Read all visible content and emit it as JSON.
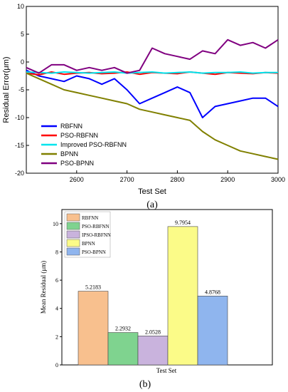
{
  "chart_data": [
    {
      "type": "line",
      "xlabel": "Test Set",
      "ylabel": "Residual Error(μm)",
      "xlim": [
        2500,
        3000
      ],
      "ylim": [
        -20,
        10
      ],
      "xticks": [
        2600,
        2700,
        2800,
        2900,
        3000
      ],
      "yticks": [
        -20,
        -15,
        -10,
        -5,
        0,
        5,
        10
      ],
      "legend_position": "bottom-left",
      "panel_label": "(a)",
      "series": [
        {
          "name": "RBFNN",
          "color": "#0000ff",
          "x": [
            2500,
            2525,
            2550,
            2575,
            2600,
            2625,
            2650,
            2675,
            2700,
            2725,
            2750,
            2775,
            2800,
            2825,
            2850,
            2875,
            2900,
            2925,
            2950,
            2975,
            3000
          ],
          "y": [
            -1.5,
            -2.5,
            -3.0,
            -3.5,
            -2.5,
            -3.0,
            -4.0,
            -3.0,
            -5.0,
            -7.5,
            -6.5,
            -5.5,
            -4.5,
            -5.5,
            -10.0,
            -8.0,
            -7.5,
            -7.0,
            -6.5,
            -6.5,
            -8.0
          ]
        },
        {
          "name": "PSO-RBFNN",
          "color": "#ff0000",
          "x": [
            2500,
            2525,
            2550,
            2575,
            2600,
            2625,
            2650,
            2675,
            2700,
            2725,
            2750,
            2775,
            2800,
            2825,
            2850,
            2875,
            2900,
            2925,
            2950,
            2975,
            3000
          ],
          "y": [
            -2.0,
            -2.3,
            -1.8,
            -2.2,
            -2.0,
            -1.9,
            -2.1,
            -2.0,
            -1.8,
            -2.2,
            -1.9,
            -2.0,
            -2.1,
            -1.8,
            -2.0,
            -2.2,
            -1.9,
            -2.0,
            -2.1,
            -1.9,
            -2.0
          ]
        },
        {
          "name": "Improved PSO-RBFNN",
          "color": "#00e5ee",
          "x": [
            2500,
            2525,
            2550,
            2575,
            2600,
            2625,
            2650,
            2675,
            2700,
            2725,
            2750,
            2775,
            2800,
            2825,
            2850,
            2875,
            2900,
            2925,
            2950,
            2975,
            3000
          ],
          "y": [
            -1.8,
            -1.9,
            -2.0,
            -1.8,
            -1.9,
            -2.0,
            -1.9,
            -1.8,
            -2.0,
            -1.9,
            -1.8,
            -2.0,
            -1.9,
            -1.8,
            -2.0,
            -1.9,
            -1.9,
            -1.8,
            -2.0,
            -1.9,
            -1.9
          ]
        },
        {
          "name": "BPNN",
          "color": "#808000",
          "x": [
            2500,
            2525,
            2550,
            2575,
            2600,
            2625,
            2650,
            2675,
            2700,
            2725,
            2750,
            2775,
            2800,
            2825,
            2850,
            2875,
            2900,
            2925,
            2950,
            2975,
            3000
          ],
          "y": [
            -2.0,
            -3.0,
            -4.0,
            -5.0,
            -5.5,
            -6.0,
            -6.5,
            -7.0,
            -7.5,
            -8.5,
            -9.0,
            -9.5,
            -10.0,
            -10.5,
            -12.5,
            -14.0,
            -15.0,
            -16.0,
            -16.5,
            -17.0,
            -17.5
          ]
        },
        {
          "name": "PSO-BPNN",
          "color": "#800080",
          "x": [
            2500,
            2525,
            2550,
            2575,
            2600,
            2625,
            2650,
            2675,
            2700,
            2725,
            2750,
            2775,
            2800,
            2825,
            2850,
            2875,
            2900,
            2925,
            2950,
            2975,
            3000
          ],
          "y": [
            -1.0,
            -2.0,
            -0.5,
            -0.5,
            -1.5,
            -1.0,
            -1.5,
            -1.0,
            -2.0,
            -1.5,
            2.5,
            1.5,
            1.0,
            0.5,
            2.0,
            1.5,
            4.0,
            3.0,
            3.5,
            2.5,
            4.0
          ]
        }
      ]
    },
    {
      "type": "bar",
      "xlabel": "Test Set",
      "ylabel": "Mean Residual  (μm)",
      "ylim": [
        0,
        11
      ],
      "yticks": [
        0,
        2,
        4,
        6,
        8,
        10
      ],
      "legend_position": "top-left",
      "panel_label": "(b)",
      "series": [
        {
          "name": "RBFNN",
          "value": 5.2183,
          "label": "5.2183",
          "color": "#f8c08e"
        },
        {
          "name": "PSO-RBFNN",
          "value": 2.2932,
          "label": "2.2932",
          "color": "#7fd38f"
        },
        {
          "name": "IPSO-RBFNN",
          "value": 2.0528,
          "label": "2.0528",
          "color": "#c9b3dd"
        },
        {
          "name": "BPNN",
          "value": 9.7954,
          "label": "9.7954",
          "color": "#fbfb88"
        },
        {
          "name": "PSO-BPNN",
          "value": 4.8768,
          "label": "4.8768",
          "color": "#8fb5ee"
        }
      ]
    }
  ]
}
